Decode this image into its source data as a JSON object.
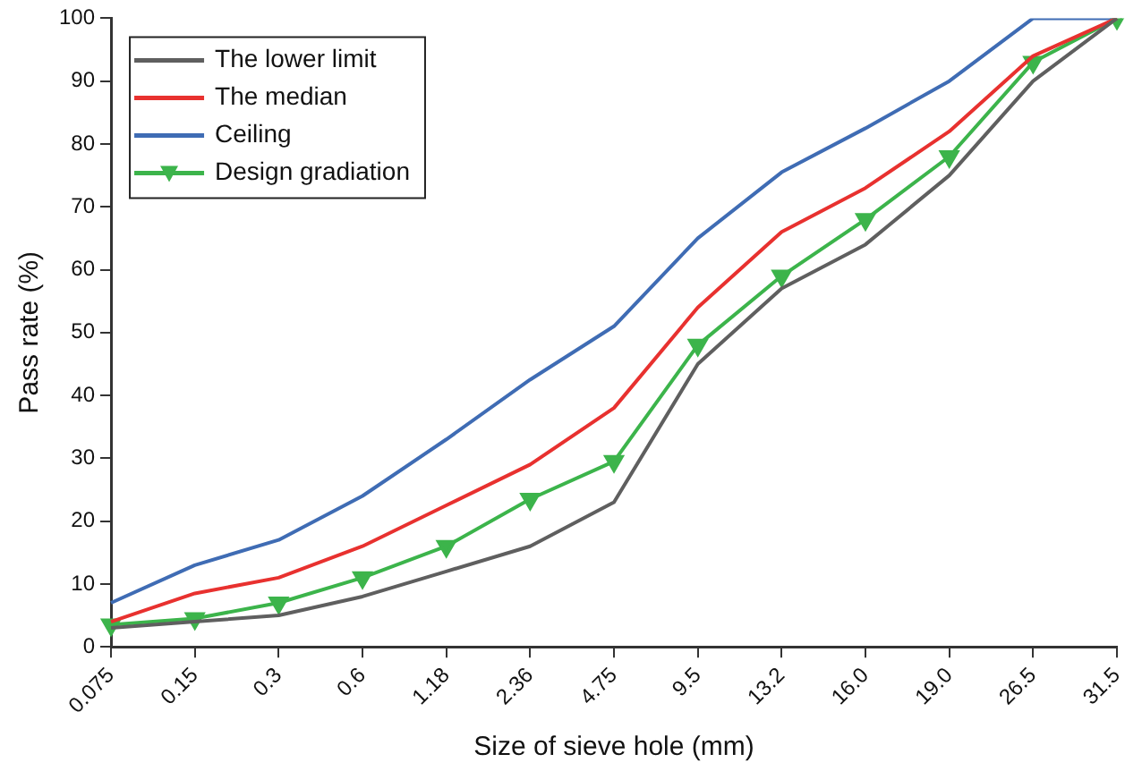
{
  "chart_data": {
    "type": "line",
    "xlabel": "Size of sieve hole (mm)",
    "ylabel": "Pass rate (%)",
    "categories": [
      "0.075",
      "0.15",
      "0.3",
      "0.6",
      "1.18",
      "2.36",
      "4.75",
      "9.5",
      "13.2",
      "16.0",
      "19.0",
      "26.5",
      "31.5"
    ],
    "ylim": [
      0,
      100
    ],
    "yticks": [
      0,
      10,
      20,
      30,
      40,
      50,
      60,
      70,
      80,
      90,
      100
    ],
    "grid": false,
    "legend": "top left",
    "series": [
      {
        "name": "The lower limit",
        "color": "#5f5f5f",
        "marker": "none",
        "values": [
          3,
          4,
          5,
          8,
          12,
          16,
          23,
          45,
          57,
          64,
          75,
          90,
          100
        ]
      },
      {
        "name": "The median",
        "color": "#e8312f",
        "marker": "none",
        "values": [
          4,
          8.5,
          11,
          16,
          22.5,
          29,
          38,
          54,
          66,
          73,
          82,
          94,
          100
        ]
      },
      {
        "name": "Ceiling",
        "color": "#3f6cb4",
        "marker": "none",
        "values": [
          7,
          13,
          17,
          24,
          33,
          42.5,
          51,
          65,
          75.5,
          82.5,
          90,
          100,
          100
        ]
      },
      {
        "name": "Design gradiation",
        "color": "#3cb44b",
        "marker": "triangle",
        "values": [
          3.5,
          4.5,
          7,
          11,
          16,
          23.5,
          29.5,
          48,
          59,
          68,
          78,
          93,
          100
        ]
      }
    ]
  }
}
